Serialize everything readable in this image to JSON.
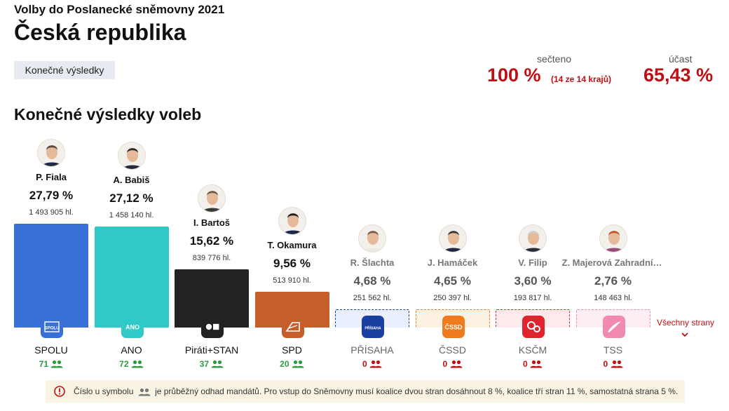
{
  "header": {
    "subtitle": "Volby do Poslanecké sněmovny 2021",
    "title": "Česká republika",
    "tag": "Konečné výsledky"
  },
  "stats": {
    "counted_label": "sečteno",
    "counted_value": "100 %",
    "counted_note": "(14 ze 14 krajů)",
    "turnout_label": "účast",
    "turnout_value": "65,43 %"
  },
  "section_title": "Konečné výsledky voleb",
  "parties": [
    {
      "name": "SPOLU",
      "leader": "P. Fiala",
      "pct": "27,79 %",
      "votes": "1 493 905 hl.",
      "share": 27.79,
      "seats": "71",
      "passed": true,
      "color": "#3b6fd8",
      "logo_text": "SPOLU"
    },
    {
      "name": "ANO",
      "leader": "A. Babiš",
      "pct": "27,12 %",
      "votes": "1 458 140 hl.",
      "share": 27.12,
      "seats": "72",
      "passed": true,
      "color": "#2fc9c8",
      "logo_text": "ANO"
    },
    {
      "name": "Piráti+STAN",
      "leader": "I. Bartoš",
      "pct": "15,62 %",
      "votes": "839 776 hl.",
      "share": 15.62,
      "seats": "37",
      "passed": true,
      "color": "#222222",
      "logo_text": ""
    },
    {
      "name": "SPD",
      "leader": "T. Okamura",
      "pct": "9,56 %",
      "votes": "513 910 hl.",
      "share": 9.56,
      "seats": "20",
      "passed": true,
      "color": "#c55e2a",
      "logo_text": ""
    },
    {
      "name": "PŘÍSAHA",
      "leader": "R. Šlachta",
      "pct": "4,68 %",
      "votes": "251 562 hl.",
      "share": 4.68,
      "seats": "0",
      "passed": false,
      "color": "#1b3fa0",
      "logo_text": "PŘÍSAHA"
    },
    {
      "name": "ČSSD",
      "leader": "J. Hamáček",
      "pct": "4,65 %",
      "votes": "250 397 hl.",
      "share": 4.65,
      "seats": "0",
      "passed": false,
      "color": "#f07b1e",
      "logo_text": "ČSSD"
    },
    {
      "name": "KSČM",
      "leader": "V. Filip",
      "pct": "3,60 %",
      "votes": "193 817 hl.",
      "share": 3.6,
      "seats": "0",
      "passed": false,
      "color": "#e0232e",
      "logo_text": ""
    },
    {
      "name": "TSS",
      "leader": "Z. Majerová Zahradníková",
      "pct": "2,76 %",
      "votes": "148 463 hl.",
      "share": 2.76,
      "seats": "0",
      "passed": false,
      "color": "#f08ab0",
      "logo_text": ""
    }
  ],
  "more_label": "Všechny strany",
  "notice": {
    "before": "Číslo u symbolu",
    "after": "je průběžný odhad mandátů. Pro vstup do Sněmovny musí koalice dvou stran dosáhnout 8 %, koalice tří stran 11 %, samostatná strana 5 %."
  },
  "colors": {
    "accent_red": "#c00f14",
    "seats_green": "#2a9b3f",
    "seats_red": "#c00f14"
  }
}
